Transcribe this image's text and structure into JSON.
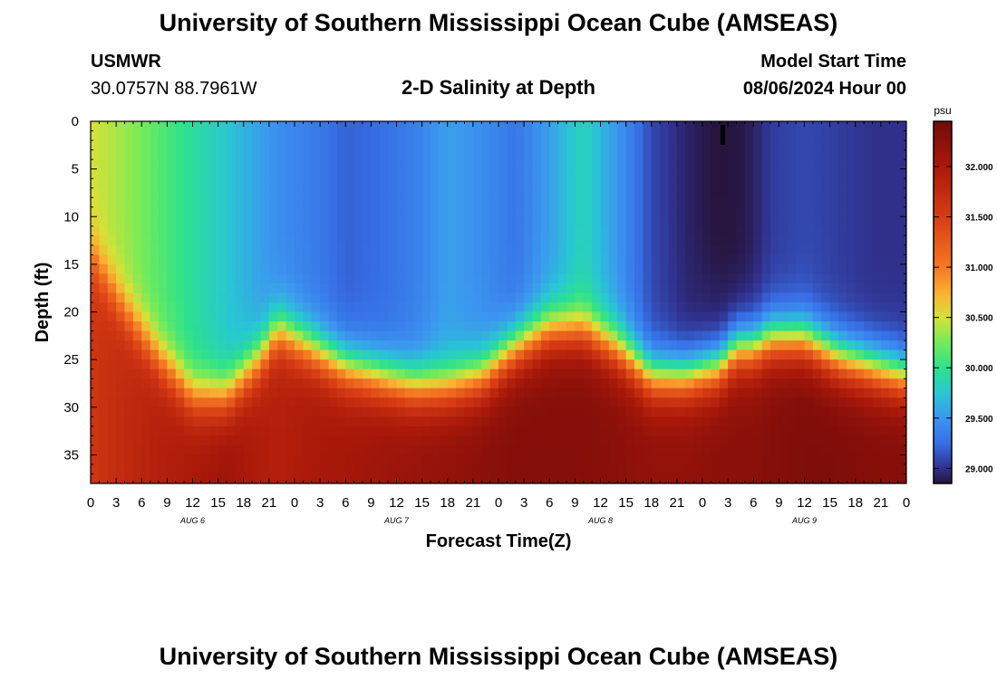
{
  "page": {
    "title": "University of Southern Mississippi Ocean Cube (AMSEAS)",
    "footer_title": "University of Southern Mississippi Ocean Cube (AMSEAS)",
    "station": {
      "name": "USMWR",
      "coordinates": "30.0757N  88.7961W"
    },
    "plot_title": "2-D Salinity at Depth",
    "model_start": {
      "label": "Model Start Time",
      "value": "08/06/2024 Hour 00"
    }
  },
  "chart_data": {
    "type": "heatmap",
    "title": "2-D Salinity at Depth",
    "xlabel": "Forecast Time(Z)",
    "ylabel": "Depth (ft)",
    "x_unit": "hours since 08/06/2024 00Z",
    "xlim": [
      0,
      96
    ],
    "ylim": [
      38,
      0
    ],
    "x_ticks": [
      0,
      3,
      6,
      9,
      12,
      15,
      18,
      21,
      24,
      27,
      30,
      33,
      36,
      39,
      42,
      45,
      48,
      51,
      54,
      57,
      60,
      63,
      66,
      69,
      72,
      75,
      78,
      81,
      84,
      87,
      90,
      93,
      96
    ],
    "x_tick_labels": [
      "0",
      "3",
      "6",
      "9",
      "12",
      "15",
      "18",
      "21",
      "0",
      "3",
      "6",
      "9",
      "12",
      "15",
      "18",
      "21",
      "0",
      "3",
      "6",
      "9",
      "12",
      "15",
      "18",
      "21",
      "0",
      "3",
      "6",
      "9",
      "12",
      "15",
      "18",
      "21",
      "0"
    ],
    "date_labels": [
      {
        "x": 12,
        "text": "AUG 6"
      },
      {
        "x": 36,
        "text": "AUG 7"
      },
      {
        "x": 60,
        "text": "AUG 8"
      },
      {
        "x": 84,
        "text": "AUG 9"
      }
    ],
    "y_ticks": [
      0,
      5,
      10,
      15,
      20,
      25,
      30,
      35
    ],
    "colorbar": {
      "unit": "psu",
      "range": [
        28.85,
        32.45
      ],
      "ticks": [
        29.0,
        29.5,
        30.0,
        30.5,
        31.0,
        31.5,
        32.0
      ],
      "tick_labels": [
        "29.000",
        "29.500",
        "30.000",
        "30.500",
        "31.000",
        "31.500",
        "32.000"
      ]
    },
    "fields": {
      "time_hours": [
        0,
        4,
        8,
        12,
        16,
        20,
        22,
        26,
        30,
        34,
        38,
        42,
        46,
        50,
        54,
        58,
        62,
        66,
        70,
        74,
        76,
        78,
        80,
        84,
        88,
        92,
        96
      ],
      "surface_salinity": [
        30.5,
        30.35,
        30.15,
        29.95,
        29.75,
        29.55,
        29.45,
        29.35,
        29.2,
        29.25,
        29.35,
        29.55,
        29.45,
        29.3,
        29.55,
        29.85,
        29.5,
        29.1,
        28.95,
        28.9,
        28.9,
        28.95,
        29.05,
        29.1,
        29.05,
        29.0,
        29.0
      ],
      "halocline_depth_ft": [
        14,
        20,
        25,
        29,
        29,
        25,
        22,
        24,
        26,
        27,
        28,
        28,
        27,
        24,
        22,
        22,
        24,
        27,
        27,
        26,
        24,
        24,
        23,
        23,
        25,
        26,
        27
      ],
      "bottom_salinity": [
        31.6,
        31.75,
        31.9,
        32.0,
        32.1,
        31.95,
        31.9,
        32.0,
        32.05,
        32.1,
        32.15,
        32.2,
        32.25,
        32.3,
        32.3,
        32.3,
        32.25,
        32.2,
        32.2,
        32.25,
        32.25,
        32.25,
        32.3,
        32.35,
        32.35,
        32.3,
        32.3
      ],
      "low_salinity_plume": {
        "center_hour": 74.5,
        "depth_range_ft": [
          0,
          16
        ],
        "min_salinity": 28.85
      }
    }
  }
}
